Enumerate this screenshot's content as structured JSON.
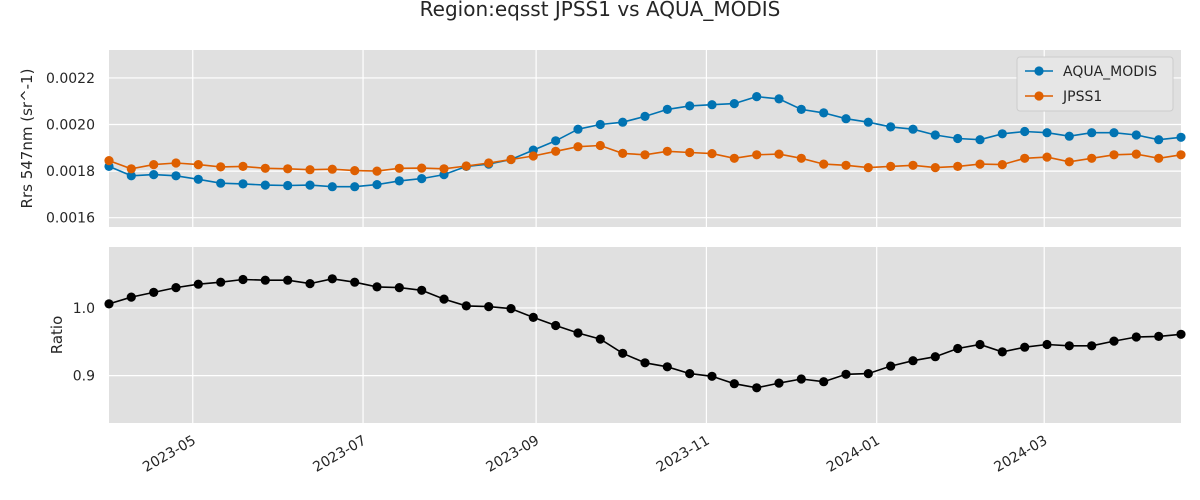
{
  "chart_data": {
    "type": "line",
    "title": "Region:eqsst JPSS1 vs AQUA_MODIS",
    "x": [
      "2023-04-01",
      "2023-04-09",
      "2023-04-17",
      "2023-04-25",
      "2023-05-03",
      "2023-05-11",
      "2023-05-19",
      "2023-05-27",
      "2023-06-04",
      "2023-06-12",
      "2023-06-20",
      "2023-06-28",
      "2023-07-06",
      "2023-07-14",
      "2023-07-22",
      "2023-07-30",
      "2023-08-07",
      "2023-08-15",
      "2023-08-23",
      "2023-08-31",
      "2023-09-08",
      "2023-09-16",
      "2023-09-24",
      "2023-10-02",
      "2023-10-10",
      "2023-10-18",
      "2023-10-26",
      "2023-11-03",
      "2023-11-11",
      "2023-11-19",
      "2023-11-27",
      "2023-12-05",
      "2023-12-13",
      "2023-12-21",
      "2023-12-29",
      "2024-01-06",
      "2024-01-14",
      "2024-01-22",
      "2024-01-30",
      "2024-02-07",
      "2024-02-15",
      "2024-02-23",
      "2024-03-02",
      "2024-03-10",
      "2024-03-18",
      "2024-03-26",
      "2024-04-03",
      "2024-04-11",
      "2024-04-19"
    ],
    "xticklabels": [
      "2023-05",
      "2023-07",
      "2023-09",
      "2023-11",
      "2024-01",
      "2024-03"
    ],
    "xtickdates": [
      "2023-05-01",
      "2023-07-01",
      "2023-09-01",
      "2023-11-01",
      "2024-01-01",
      "2024-03-01"
    ],
    "xlim": [
      "2023-04-01",
      "2024-04-19"
    ],
    "grid": true,
    "panels": [
      {
        "ylabel": "Rrs 547nm (sr^-1)",
        "ylim": [
          0.00156,
          0.00232
        ],
        "yticks": [
          0.0016,
          0.0018,
          0.002,
          0.0022
        ],
        "yticklabels": [
          "0.0016",
          "0.0018",
          "0.0020",
          "0.0022"
        ],
        "legend_position": "top-right",
        "series": [
          {
            "name": "AQUA_MODIS",
            "color": "#0173b2",
            "values": [
              0.00182,
              0.00178,
              0.001785,
              0.00178,
              0.001765,
              0.001748,
              0.001745,
              0.00174,
              0.001738,
              0.00174,
              0.001733,
              0.001733,
              0.001742,
              0.001758,
              0.001768,
              0.001785,
              0.00182,
              0.00183,
              0.00185,
              0.00189,
              0.00193,
              0.00198,
              0.002,
              0.00201,
              0.002035,
              0.002065,
              0.00208,
              0.002085,
              0.00209,
              0.00212,
              0.00211,
              0.002065,
              0.00205,
              0.002025,
              0.00201,
              0.00199,
              0.00198,
              0.001955,
              0.00194,
              0.001935,
              0.00196,
              0.00197,
              0.001965,
              0.00195,
              0.001965,
              0.001965,
              0.001955,
              0.001935,
              0.001945
            ]
          },
          {
            "name": "JPSS1",
            "color": "#de5f00",
            "values": [
              0.001845,
              0.00181,
              0.001828,
              0.001835,
              0.001828,
              0.001818,
              0.00182,
              0.001812,
              0.00181,
              0.001806,
              0.001808,
              0.001802,
              0.0018,
              0.001812,
              0.001813,
              0.00181,
              0.001822,
              0.001835,
              0.00185,
              0.001865,
              0.001885,
              0.001905,
              0.00191,
              0.001876,
              0.00187,
              0.001885,
              0.00188,
              0.001875,
              0.001855,
              0.00187,
              0.001873,
              0.001855,
              0.00183,
              0.001825,
              0.001815,
              0.00182,
              0.001825,
              0.001815,
              0.00182,
              0.00183,
              0.001828,
              0.001855,
              0.00186,
              0.00184,
              0.001855,
              0.00187,
              0.001873,
              0.001855,
              0.00187
            ]
          }
        ]
      },
      {
        "ylabel": "Ratio",
        "ylim": [
          0.83,
          1.09
        ],
        "yticks": [
          0.9,
          1.0
        ],
        "yticklabels": [
          "0.9",
          "1.0"
        ],
        "series": [
          {
            "name": "",
            "color": "#000000",
            "values": [
              1.006,
              1.016,
              1.023,
              1.03,
              1.035,
              1.038,
              1.042,
              1.041,
              1.041,
              1.036,
              1.043,
              1.038,
              1.031,
              1.03,
              1.026,
              1.013,
              1.003,
              1.002,
              0.999,
              0.986,
              0.974,
              0.963,
              0.954,
              0.933,
              0.919,
              0.913,
              0.903,
              0.899,
              0.888,
              0.882,
              0.889,
              0.895,
              0.891,
              0.902,
              0.903,
              0.914,
              0.922,
              0.928,
              0.94,
              0.946,
              0.935,
              0.942,
              0.946,
              0.944,
              0.944,
              0.951,
              0.957,
              0.958,
              0.961
            ]
          }
        ]
      }
    ]
  }
}
